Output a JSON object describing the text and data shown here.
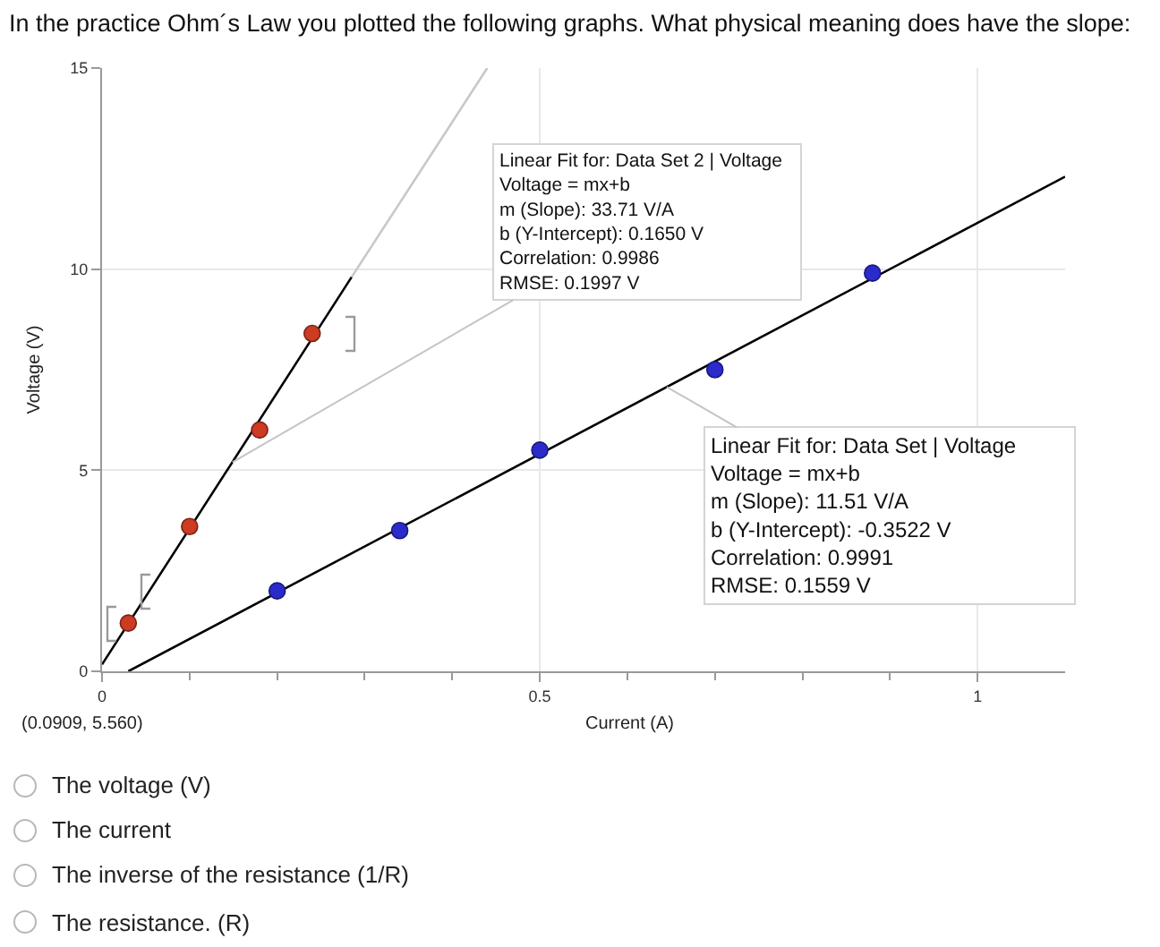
{
  "chart_data": {
    "type": "scatter",
    "title": "In the practice Ohm´s Law you plotted the following graphs. What physical meaning does have the slope:",
    "xlabel": "Current (A)",
    "ylabel": "Voltage (V)",
    "xlim": [
      0,
      1.1
    ],
    "xticks": [
      0,
      {
        "value": 0.1,
        "label": null
      },
      {
        "value": 0.2,
        "label": null
      },
      {
        "value": 0.3,
        "label": null
      },
      {
        "value": 0.4,
        "label": null
      },
      0.5,
      {
        "value": 0.6,
        "label": null
      },
      {
        "value": 0.7,
        "label": null
      },
      {
        "value": 0.8,
        "label": null
      },
      {
        "value": 0.9,
        "label": null
      },
      1
    ],
    "ylim": [
      0,
      15
    ],
    "yticks": [
      0,
      5,
      10,
      15
    ],
    "grid": true,
    "marker": "circle",
    "series": [
      {
        "type": "line",
        "marker": "none",
        "color": "#c8c8c8",
        "x": [
          0.285,
          0.44
        ],
        "values": [
          9.8,
          15
        ]
      },
      {
        "type": "line",
        "marker": "none",
        "color": "#000000",
        "x": [
          0,
          0.285
        ],
        "values": [
          0.17,
          9.8
        ]
      },
      {
        "type": "line",
        "marker": "none",
        "color": "#000000",
        "x": [
          0.03,
          1.1
        ],
        "values": [
          0,
          12.3
        ]
      },
      {
        "color": "#cc3b22",
        "x": [
          0.03,
          0.1,
          0.18,
          0.24
        ],
        "values": [
          1.2,
          3.6,
          6.0,
          8.4
        ]
      },
      {
        "color": "#2b2bcc",
        "x": [
          0.2,
          0.34,
          0.5,
          0.7,
          0.88
        ],
        "values": [
          2.0,
          3.5,
          5.5,
          7.5,
          9.9
        ]
      }
    ],
    "annotations": [
      {
        "text": "Linear Fit for: Data Set 2 | Voltage\nVoltage = mx+b\nm (Slope): 33.71 V/A\nb (Y-Intercept): 0.1650 V\nCorrelation: 0.9986\nRMSE: 0.1997 V",
        "x": 0.149,
        "y": 5.2
      },
      {
        "text": "Linear Fit for: Data Set | Voltage\nVoltage = mx+b\nm (Slope): 11.51 V/A\nb (Y-Intercept): -0.3522 V\nCorrelation: 0.9991\nRMSE: 0.1559 V",
        "x": 0.645,
        "y": 7.07
      },
      "(0.0909, 5.560)",
      "The voltage (V)",
      "The current",
      "The inverse of the resistance (1/R)",
      "The resistance. (R)"
    ]
  }
}
